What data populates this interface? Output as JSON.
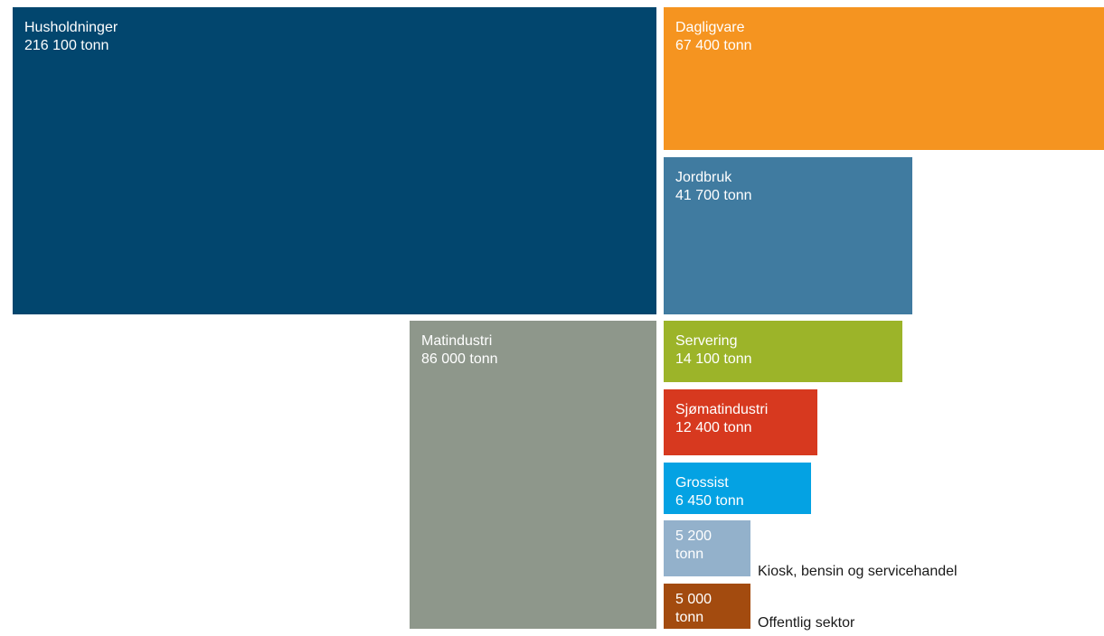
{
  "chart_data": {
    "type": "treemap",
    "unit": "tonn",
    "items": [
      {
        "name": "Husholdninger",
        "value": 216100,
        "value_label": "216 100 tonn",
        "color": "#02466e"
      },
      {
        "name": "Dagligvare",
        "value": 67400,
        "value_label": "67 400 tonn",
        "color": "#f59420"
      },
      {
        "name": "Jordbruk",
        "value": 41700,
        "value_label": "41 700 tonn",
        "color": "#407ba0"
      },
      {
        "name": "Matindustri",
        "value": 86000,
        "value_label": "86 000 tonn",
        "color": "#8e978b"
      },
      {
        "name": "Servering",
        "value": 14100,
        "value_label": "14 100 tonn",
        "color": "#9cb429"
      },
      {
        "name": "Sjømatindustri",
        "value": 12400,
        "value_label": "12 400 tonn",
        "color": "#d7391f"
      },
      {
        "name": "Grossist",
        "value": 6450,
        "value_label": "6 450 tonn",
        "color": "#04a2e3"
      },
      {
        "name": "Kiosk, bensin og servicehandel",
        "value": 5200,
        "value_label": "5 200 tonn",
        "color": "#93b1cb"
      },
      {
        "name": "Offentlig sektor",
        "value": 5000,
        "value_label": "5 000 tonn",
        "color": "#a34b0f"
      }
    ]
  }
}
